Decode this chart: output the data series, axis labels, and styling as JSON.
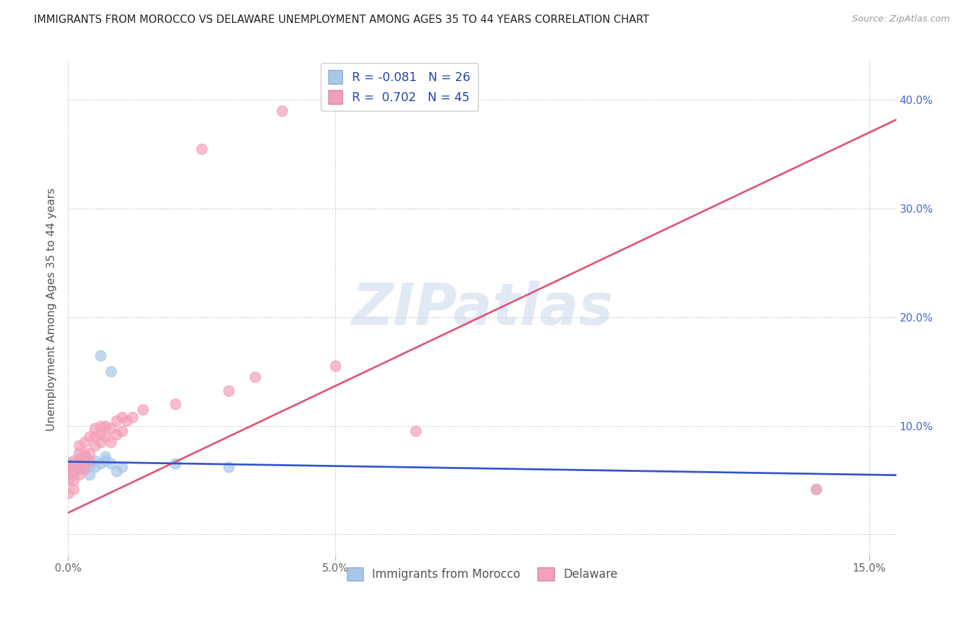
{
  "title": "IMMIGRANTS FROM MOROCCO VS DELAWARE UNEMPLOYMENT AMONG AGES 35 TO 44 YEARS CORRELATION CHART",
  "source": "Source: ZipAtlas.com",
  "ylabel": "Unemployment Among Ages 35 to 44 years",
  "xlim": [
    0.0,
    0.155
  ],
  "ylim": [
    -0.02,
    0.435
  ],
  "x_ticks": [
    0.0,
    0.05,
    0.15
  ],
  "x_tick_labels": [
    "0.0%",
    "5.0%",
    "15.0%"
  ],
  "y_ticks": [
    0.0,
    0.1,
    0.2,
    0.3,
    0.4
  ],
  "y_tick_labels_right": [
    "",
    "10.0%",
    "20.0%",
    "30.0%",
    "40.0%"
  ],
  "legend_labels": [
    "Immigrants from Morocco",
    "Delaware"
  ],
  "blue_R": -0.081,
  "blue_N": 26,
  "pink_R": 0.702,
  "pink_N": 45,
  "blue_color": "#a8c8e8",
  "pink_color": "#f4a0b8",
  "blue_line_color": "#3355cc",
  "pink_line_color": "#e05575",
  "watermark": "ZIPatlas",
  "blue_scatter_x": [
    0.0,
    0.0,
    0.001,
    0.001,
    0.002,
    0.002,
    0.002,
    0.003,
    0.003,
    0.003,
    0.004,
    0.004,
    0.004,
    0.005,
    0.005,
    0.006,
    0.006,
    0.007,
    0.007,
    0.008,
    0.008,
    0.009,
    0.01,
    0.02,
    0.03,
    0.14
  ],
  "blue_scatter_y": [
    0.055,
    0.065,
    0.055,
    0.065,
    0.06,
    0.065,
    0.07,
    0.06,
    0.068,
    0.072,
    0.055,
    0.063,
    0.068,
    0.062,
    0.068,
    0.065,
    0.165,
    0.068,
    0.072,
    0.065,
    0.15,
    0.058,
    0.062,
    0.065,
    0.062,
    0.042
  ],
  "pink_scatter_x": [
    0.0,
    0.0,
    0.0,
    0.001,
    0.001,
    0.001,
    0.001,
    0.001,
    0.002,
    0.002,
    0.002,
    0.002,
    0.002,
    0.003,
    0.003,
    0.003,
    0.003,
    0.004,
    0.004,
    0.004,
    0.005,
    0.005,
    0.005,
    0.006,
    0.006,
    0.006,
    0.007,
    0.007,
    0.008,
    0.008,
    0.009,
    0.009,
    0.01,
    0.01,
    0.011,
    0.012,
    0.014,
    0.02,
    0.025,
    0.03,
    0.035,
    0.04,
    0.05,
    0.065,
    0.14
  ],
  "pink_scatter_y": [
    0.038,
    0.05,
    0.06,
    0.042,
    0.05,
    0.058,
    0.062,
    0.068,
    0.055,
    0.062,
    0.068,
    0.075,
    0.082,
    0.06,
    0.068,
    0.075,
    0.085,
    0.068,
    0.075,
    0.09,
    0.082,
    0.09,
    0.098,
    0.085,
    0.092,
    0.1,
    0.09,
    0.1,
    0.085,
    0.098,
    0.092,
    0.105,
    0.095,
    0.108,
    0.105,
    0.108,
    0.115,
    0.12,
    0.355,
    0.132,
    0.145,
    0.39,
    0.155,
    0.095,
    0.042
  ]
}
